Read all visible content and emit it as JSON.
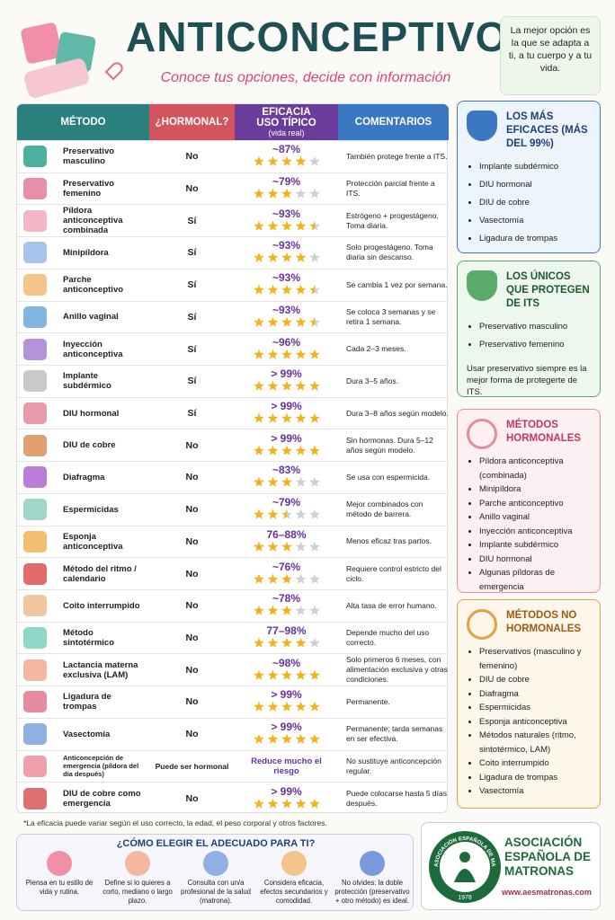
{
  "header": {
    "title": "ANTICONCEPTIVOS",
    "subtitle": "Conoce tus opciones, decide con información",
    "tagline": "La mejor opción es la que se adapta a ti, a tu cuerpo y a tu vida."
  },
  "table": {
    "columns": [
      "MÉTODO",
      "¿HORMONAL?",
      "EFICACIA USO TÍPICO",
      "COMENTARIOS"
    ],
    "efficacy_note": "(vida real)",
    "rows": [
      {
        "method": "Preservativo masculino",
        "hormonal": "No",
        "efficacy": "~87%",
        "stars": 4,
        "comment": "También protege frente a ITS."
      },
      {
        "method": "Preservativo femenino",
        "hormonal": "No",
        "efficacy": "~79%",
        "stars": 3,
        "comment": "Protección parcial frente a ITS."
      },
      {
        "method": "Píldora anticonceptiva combinada",
        "hormonal": "Sí",
        "efficacy": "~93%",
        "stars": 4.5,
        "comment": "Estrógeno + progestágeno. Toma diaria."
      },
      {
        "method": "Minipíldora",
        "hormonal": "Sí",
        "efficacy": "~93%",
        "stars": 4,
        "comment": "Solo progestágeno. Toma diaria sin descanso."
      },
      {
        "method": "Parche anticonceptivo",
        "hormonal": "Sí",
        "efficacy": "~93%",
        "stars": 4.5,
        "comment": "Se cambia 1 vez por semana."
      },
      {
        "method": "Anillo vaginal",
        "hormonal": "Sí",
        "efficacy": "~93%",
        "stars": 4.5,
        "comment": "Se coloca 3 semanas y se retira 1 semana."
      },
      {
        "method": "Inyección anticonceptiva",
        "hormonal": "Sí",
        "efficacy": "~96%",
        "stars": 5,
        "comment": "Cada 2–3 meses."
      },
      {
        "method": "Implante subdérmico",
        "hormonal": "Sí",
        "efficacy": "> 99%",
        "stars": 5,
        "comment": "Dura 3–5 años."
      },
      {
        "method": "DIU hormonal",
        "hormonal": "Sí",
        "efficacy": "> 99%",
        "stars": 5,
        "comment": "Dura 3–8 años según modelo."
      },
      {
        "method": "DIU de cobre",
        "hormonal": "No",
        "efficacy": "> 99%",
        "stars": 5,
        "comment": "Sin hormonas. Dura 5–12 años según modelo."
      },
      {
        "method": "Diafragma",
        "hormonal": "No",
        "efficacy": "~83%",
        "stars": 3,
        "comment": "Se usa con espermicida."
      },
      {
        "method": "Espermicidas",
        "hormonal": "No",
        "efficacy": "~79%",
        "stars": 2.5,
        "comment": "Mejor combinados con método de barrera."
      },
      {
        "method": "Esponja anticonceptiva",
        "hormonal": "No",
        "efficacy": "76–88%",
        "stars": 3,
        "comment": "Menos eficaz tras partos."
      },
      {
        "method": "Método del ritmo / calendario",
        "hormonal": "No",
        "efficacy": "~76%",
        "stars": 3,
        "comment": "Requiere control estricto del ciclo."
      },
      {
        "method": "Coito interrumpido",
        "hormonal": "No",
        "efficacy": "~78%",
        "stars": 3,
        "comment": "Alta tasa de error humano."
      },
      {
        "method": "Método sintotérmico",
        "hormonal": "No",
        "efficacy": "77–98%",
        "stars": 4,
        "comment": "Depende mucho del uso correcto."
      },
      {
        "method": "Lactancia materna exclusiva (LAM)",
        "hormonal": "No",
        "efficacy": "~98%",
        "stars": 5,
        "comment": "Solo primeros 6 meses, con alimentación exclusiva y otras condiciones."
      },
      {
        "method": "Ligadura de trompas",
        "hormonal": "No",
        "efficacy": "> 99%",
        "stars": 5,
        "comment": "Permanente."
      },
      {
        "method": "Vasectomía",
        "hormonal": "No",
        "efficacy": "> 99%",
        "stars": 5,
        "comment": "Permanente; tarda semanas en ser efectiva."
      },
      {
        "method": "Anticoncepción de emergencia (píldora del día después)",
        "hormonal": "Puede ser hormonal",
        "efficacy": "Reduce mucho el riesgo",
        "stars": null,
        "comment": "No sustituye anticoncepción regular."
      },
      {
        "method": "DIU de cobre como emergencia",
        "hormonal": "No",
        "efficacy": "> 99%",
        "stars": 5,
        "comment": "Puede colocarse hasta 5 días después."
      }
    ],
    "footnote": "*La eficacia puede variar según el uso correcto, la edad, el peso corporal y otros factores."
  },
  "sidebar": [
    {
      "title": "LOS MÁS EFICACES (MÁS DEL 99%)",
      "items": [
        "Implante subdérmico",
        "DIU hormonal",
        "DIU de cobre",
        "Vasectomía",
        "Ligadura de trompas"
      ]
    },
    {
      "title": "LOS ÚNICOS QUE PROTEGEN DE ITS",
      "items": [
        "Preservativo masculino",
        "Preservativo femenino"
      ],
      "note": "Usar preservativo siempre es la mejor forma de protegerte de ITS."
    },
    {
      "title": "MÉTODOS HORMONALES",
      "items": [
        "Píldora anticonceptiva (combinada)",
        "Minipíldora",
        "Parche anticonceptivo",
        "Anillo vaginal",
        "Inyección anticonceptiva",
        "Implante subdérmico",
        "DIU hormonal",
        "Algunas píldoras de emergencia"
      ]
    },
    {
      "title": "MÉTODOS NO HORMONALES",
      "items": [
        "Preservativos (masculino y femenino)",
        "DIU de cobre",
        "Diafragma",
        "Espermicidas",
        "Esponja anticonceptiva",
        "Métodos naturales (ritmo, sintotérmico, LAM)",
        "Coito interrumpido",
        "Ligadura de trompas",
        "Vasectomía"
      ]
    }
  ],
  "bottom": {
    "title": "¿CÓMO ELEGIR EL ADECUADO PARA TI?",
    "tips": [
      "Piensa en tu estilo de vida y rutina.",
      "Define si lo quieres a corto, mediano o largo plazo.",
      "Consulta con un/a profesional de la salud (matrona).",
      "Considera eficacia, efectos secundarios y comodidad.",
      "No olvides: la doble protección (preservativo + otro método) es ideal."
    ]
  },
  "association": {
    "name": "ASOCIACIÓN ESPAÑOLA DE MATRONAS",
    "url": "www.aesmatronas.com",
    "logo_text": "ASOCIACIÓN ESPAÑOLA DE MATRONAS",
    "year": "1978"
  }
}
